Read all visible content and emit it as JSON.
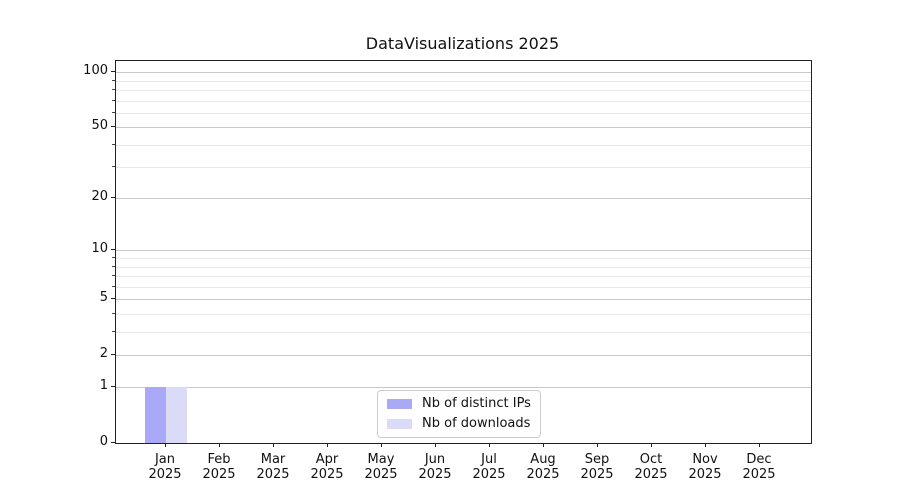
{
  "chart_data": {
    "type": "bar",
    "title": "DataVisualizations 2025",
    "yscale": "log1p",
    "categories": [
      "Jan 2025",
      "Feb 2025",
      "Mar 2025",
      "Apr 2025",
      "May 2025",
      "Jun 2025",
      "Jul 2025",
      "Aug 2025",
      "Sep 2025",
      "Oct 2025",
      "Nov 2025",
      "Dec 2025"
    ],
    "x_tick_months": [
      "Jan",
      "Feb",
      "Mar",
      "Apr",
      "May",
      "Jun",
      "Jul",
      "Aug",
      "Sep",
      "Oct",
      "Nov",
      "Dec"
    ],
    "x_tick_year": "2025",
    "series": [
      {
        "name": "Nb of distinct IPs",
        "color": "#a9a9f7",
        "values": [
          1,
          0,
          0,
          0,
          0,
          0,
          0,
          0,
          0,
          0,
          0,
          0
        ]
      },
      {
        "name": "Nb of downloads",
        "color": "#dbdbf8",
        "values": [
          1,
          0,
          0,
          0,
          0,
          0,
          0,
          0,
          0,
          0,
          0,
          0
        ]
      }
    ],
    "y_axis": {
      "major_ticks": [
        0,
        1,
        2,
        5,
        10,
        20,
        50,
        100
      ],
      "minor_ticks": [
        3,
        4,
        6,
        7,
        8,
        9,
        30,
        40,
        60,
        70,
        80,
        90
      ],
      "range": [
        0,
        110
      ]
    },
    "legend": {
      "position": "lower center",
      "entries": [
        "Nb of distinct IPs",
        "Nb of downloads"
      ]
    },
    "grid": true
  },
  "colors": {
    "bar_distinct_ips": "#a9a9f7",
    "bar_downloads": "#dbdbf8",
    "major_grid": "#c8c8c8",
    "minor_grid": "#e9e9e9",
    "spine": "#222222",
    "text": "#111111",
    "background": "#ffffff"
  }
}
